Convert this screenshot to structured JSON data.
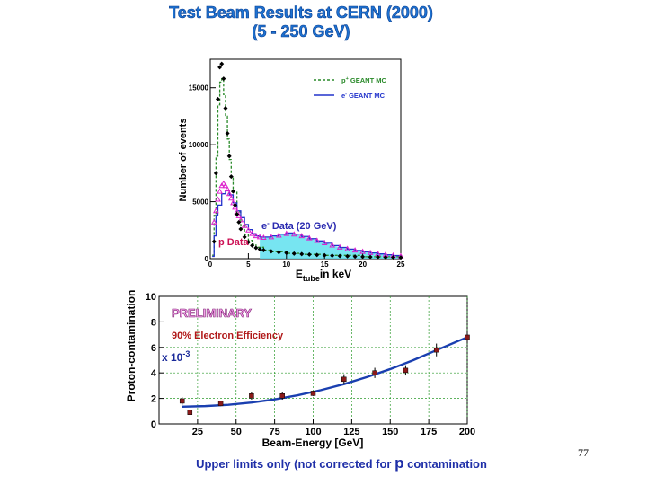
{
  "slide": {
    "title_line1": "Test Beam Results at CERN (2000)",
    "title_line2": "(5 - 250 GeV)",
    "footnote_pre": "Upper limits only (not corrected for ",
    "footnote_symbol": "p",
    "footnote_post": " contamination",
    "page_number": "77"
  },
  "chart_data": [
    {
      "type": "line",
      "ylabel": "Number of events",
      "xlabel_main": "E",
      "xlabel_sub": "tube",
      "xlabel_rest": "in keV",
      "xlim": [
        0,
        25
      ],
      "ylim": [
        0,
        17500
      ],
      "x_ticks": [
        0,
        5,
        10,
        15,
        20,
        25
      ],
      "y_ticks": [
        0,
        5000,
        10000,
        15000
      ],
      "legend": [
        {
          "name": "p+ GEANT MC",
          "label_main": "p",
          "label_sup": "+",
          "label_rest": " GEANT MC",
          "style": "dashed",
          "color": "#2a8a2a"
        },
        {
          "name": "e- GEANT MC",
          "label_main": "e",
          "label_sup": "-",
          "label_rest": " GEANT MC",
          "style": "solid",
          "color": "#2233cc"
        }
      ],
      "annotations": {
        "e_data": {
          "main": "e",
          "sup": "-",
          "rest": " Data (20 GeV)",
          "color": "#2a2ab0"
        },
        "p_data": {
          "text": "p Data",
          "color": "#cc1155"
        }
      },
      "series": [
        {
          "name": "p Data",
          "marker": "diamond",
          "color": "#000000",
          "x": [
            0.5,
            0.75,
            1.0,
            1.25,
            1.5,
            1.75,
            2.0,
            2.25,
            2.5,
            2.75,
            3.0,
            3.25,
            3.5,
            3.75,
            4.0,
            4.5,
            5.0,
            5.5,
            6.0,
            6.5,
            7,
            8,
            9,
            10,
            11,
            12,
            13,
            14,
            15,
            16,
            17,
            18,
            19,
            20,
            21,
            22,
            23,
            24,
            25
          ],
          "y": [
            1500,
            7500,
            14000,
            16800,
            17100,
            15800,
            13200,
            11000,
            9000,
            7200,
            5900,
            4700,
            3900,
            3200,
            2600,
            1900,
            1450,
            1150,
            950,
            830,
            750,
            640,
            560,
            500,
            440,
            400,
            360,
            330,
            300,
            270,
            240,
            215,
            190,
            170,
            150,
            135,
            120,
            105,
            95
          ]
        },
        {
          "name": "e- Data (20 GeV)",
          "marker": "triangle",
          "color": "#dd22cc",
          "x": [
            0.5,
            0.75,
            1.0,
            1.25,
            1.5,
            1.75,
            2.0,
            2.25,
            2.5,
            2.75,
            3.0,
            3.25,
            3.5,
            3.75,
            4.0,
            4.5,
            5.0,
            5.5,
            6.0,
            6.5,
            7,
            8,
            9,
            10,
            11,
            12,
            13,
            14,
            15,
            16,
            17,
            18,
            19,
            20,
            21,
            22,
            23,
            24,
            25
          ],
          "y": [
            3200,
            4200,
            5200,
            5900,
            6400,
            6600,
            6400,
            6100,
            5700,
            5300,
            4900,
            4500,
            4100,
            3750,
            3400,
            2900,
            2500,
            2200,
            2000,
            1900,
            1850,
            1900,
            2050,
            2200,
            2150,
            2000,
            1800,
            1580,
            1380,
            1180,
            1000,
            860,
            740,
            620,
            520,
            430,
            350,
            280,
            220
          ]
        },
        {
          "name": "p+ GEANT MC",
          "style": "dashed",
          "color": "#2a8a2a",
          "x": [
            0.25,
            0.5,
            0.75,
            1.0,
            1.25,
            1.5,
            1.75,
            2.0,
            2.25,
            2.5,
            2.75,
            3.0,
            3.5,
            4.0,
            4.5,
            5.0,
            5.5,
            6.0,
            7,
            8,
            10,
            12,
            15,
            20,
            25
          ],
          "y": [
            300,
            3800,
            9000,
            13500,
            15500,
            15800,
            14400,
            12500,
            10500,
            8700,
            7200,
            5900,
            4100,
            2900,
            2100,
            1600,
            1250,
            1000,
            750,
            600,
            470,
            380,
            290,
            170,
            90
          ]
        },
        {
          "name": "e- GEANT MC",
          "style": "solid",
          "color": "#2233cc",
          "x": [
            0.25,
            0.5,
            0.75,
            1.0,
            1.5,
            2.0,
            2.5,
            3.0,
            3.5,
            4.0,
            4.5,
            5.0,
            5.5,
            6.0,
            6.5,
            7,
            8,
            9,
            10,
            11,
            12,
            13,
            14,
            15,
            16,
            17,
            18,
            19,
            20,
            21,
            22,
            23,
            24,
            25
          ],
          "y": [
            200,
            2000,
            3800,
            4700,
            5700,
            6000,
            5600,
            4900,
            4200,
            3600,
            3000,
            2550,
            2200,
            2000,
            1900,
            1900,
            2000,
            2150,
            2250,
            2150,
            1950,
            1750,
            1550,
            1350,
            1150,
            980,
            840,
            720,
            600,
            500,
            420,
            340,
            270,
            210
          ]
        },
        {
          "name": "e- Data fill",
          "style": "fill",
          "color": "#5fe0ee",
          "x": [
            6.5,
            7,
            8,
            9,
            10,
            11,
            12,
            13,
            14,
            15,
            16,
            17,
            18,
            19,
            20,
            21,
            22,
            23,
            24,
            25
          ],
          "y": [
            1900,
            1850,
            1900,
            2050,
            2200,
            2150,
            2000,
            1800,
            1580,
            1380,
            1180,
            1000,
            860,
            740,
            620,
            520,
            430,
            350,
            280,
            220
          ]
        }
      ]
    },
    {
      "type": "scatter",
      "ylabel": "Proton-contamination",
      "xlabel_main": "Beam-Energy",
      "xlabel_unit": "[GeV]",
      "xlim": [
        0,
        200
      ],
      "ylim": [
        0,
        10
      ],
      "x_ticks": [
        25,
        50,
        75,
        100,
        125,
        150,
        175,
        200
      ],
      "y_ticks": [
        0,
        2,
        4,
        6,
        8,
        10
      ],
      "grid": true,
      "annotations": {
        "preliminary": "PRELIMINARY",
        "efficiency": "90% Electron Efficiency",
        "scale_main": "x 10",
        "scale_sup": "-3"
      },
      "series": [
        {
          "name": "data",
          "marker": "square",
          "color": "#8b1a1a",
          "x": [
            15,
            20,
            40,
            60,
            80,
            100,
            120,
            140,
            160,
            180,
            200
          ],
          "y": [
            1.8,
            0.9,
            1.6,
            2.2,
            2.2,
            2.4,
            3.5,
            4.0,
            4.2,
            5.8,
            6.8
          ],
          "err": [
            0.3,
            0.15,
            0.2,
            0.3,
            0.3,
            0.2,
            0.4,
            0.4,
            0.4,
            0.5,
            0.5
          ]
        },
        {
          "name": "fit",
          "style": "solid",
          "color": "#1a3fb0",
          "x": [
            15,
            30,
            45,
            60,
            75,
            90,
            105,
            120,
            135,
            150,
            165,
            180,
            200
          ],
          "y": [
            1.35,
            1.4,
            1.5,
            1.68,
            1.92,
            2.25,
            2.65,
            3.12,
            3.68,
            4.3,
            5.0,
            5.78,
            6.8
          ]
        }
      ]
    }
  ]
}
